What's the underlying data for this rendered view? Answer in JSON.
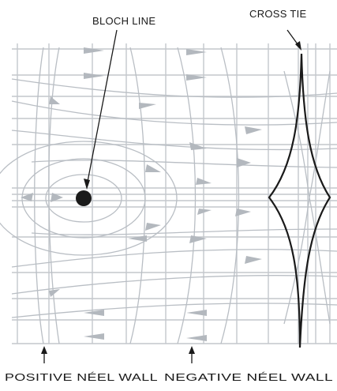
{
  "labels": {
    "bloch_line": "BLOCH LINE",
    "cross_tie": "CROSS TIE",
    "positive_neel_wall": "POSITIVE NÉEL WALL",
    "negative_neel_wall": "NEGATIVE NÉEL WALL"
  },
  "colors": {
    "ink": "#1a1a1a",
    "field_lines": "#b9bec4",
    "grid": "#c3c7cc",
    "arrows": "#b3b8be"
  }
}
